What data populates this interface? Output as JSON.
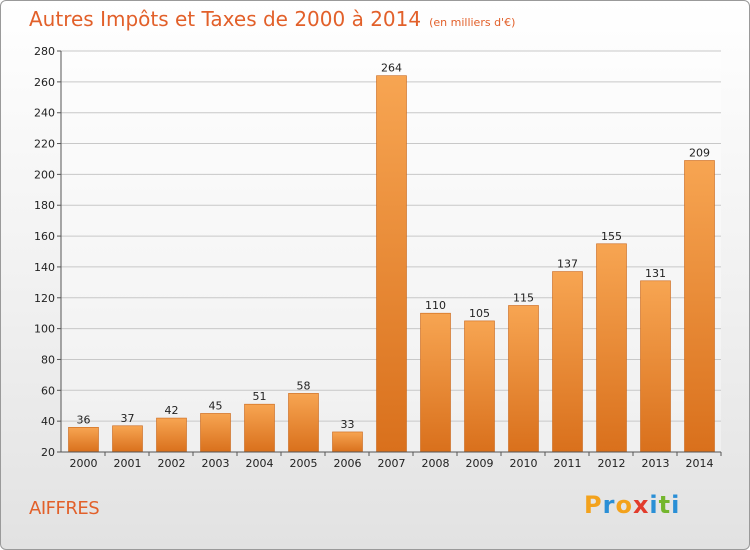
{
  "chart_data": {
    "type": "bar",
    "title": "Autres Impôts et Taxes de 2000 à 2014",
    "subtitle": "(en milliers d'€)",
    "categories": [
      "2000",
      "2001",
      "2002",
      "2003",
      "2004",
      "2005",
      "2006",
      "2007",
      "2008",
      "2009",
      "2010",
      "2011",
      "2012",
      "2013",
      "2014"
    ],
    "values": [
      36,
      37,
      42,
      45,
      51,
      58,
      33,
      264,
      110,
      105,
      115,
      137,
      155,
      131,
      209
    ],
    "ylim": [
      20,
      280
    ],
    "yticks": [
      20,
      40,
      60,
      80,
      100,
      120,
      140,
      160,
      180,
      200,
      220,
      240,
      260,
      280
    ],
    "grid": true,
    "bar_color": "#f08a30",
    "xlabel": "",
    "ylabel": ""
  },
  "commune": "AIFFRES",
  "brand": {
    "letters": [
      "P",
      "r",
      "o",
      "x",
      "i",
      "t",
      "i"
    ],
    "colors": [
      "#f3a21c",
      "#2a8fd6",
      "#f3a21c",
      "#e23c2c",
      "#2a8fd6",
      "#74b62e",
      "#2a8fd6"
    ]
  }
}
